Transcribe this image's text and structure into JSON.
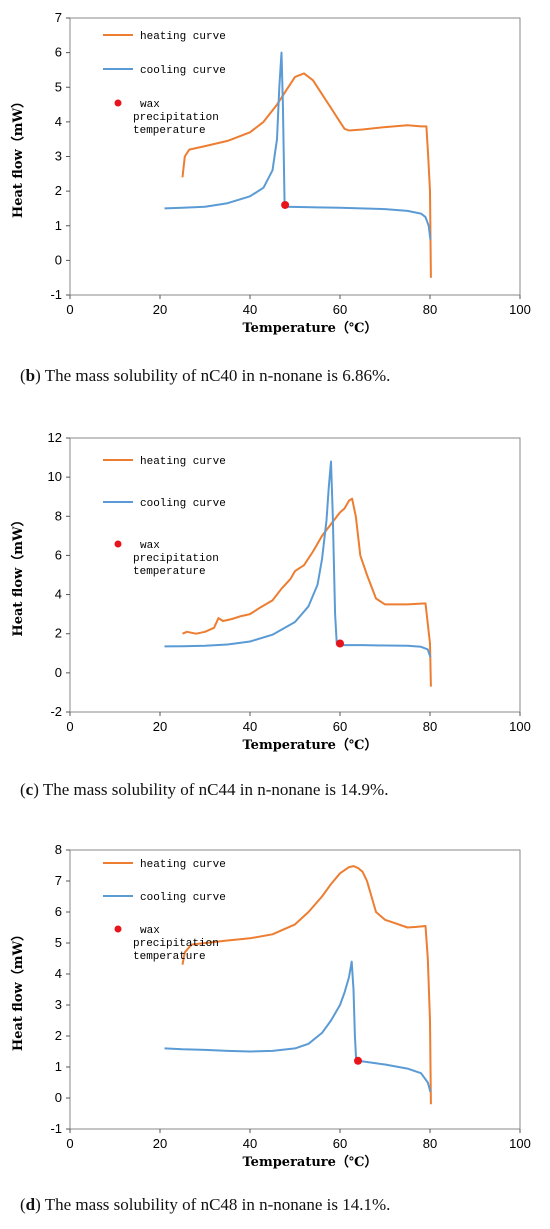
{
  "chart_data": [
    {
      "type": "line",
      "xlabel": "Temperature（℃）",
      "ylabel": "Heat flow（mW）",
      "xlim": [
        0,
        100
      ],
      "ylim": [
        -1,
        7
      ],
      "xticks": [
        "0",
        "20",
        "40",
        "60",
        "80",
        "100"
      ],
      "yticks": [
        "-1",
        "0",
        "1",
        "2",
        "3",
        "4",
        "5",
        "6",
        "7"
      ],
      "grid": false,
      "legend_placement": "top-left",
      "series": [
        {
          "name": "heating curve",
          "color": "#ED7D31",
          "points": [
            [
              25,
              2.4
            ],
            [
              25.5,
              3.0
            ],
            [
              26.5,
              3.2
            ],
            [
              30,
              3.3
            ],
            [
              35,
              3.45
            ],
            [
              40,
              3.7
            ],
            [
              43,
              4.0
            ],
            [
              46,
              4.5
            ],
            [
              48,
              4.9
            ],
            [
              50,
              5.3
            ],
            [
              52,
              5.4
            ],
            [
              54,
              5.2
            ],
            [
              56,
              4.8
            ],
            [
              58,
              4.4
            ],
            [
              60,
              4.0
            ],
            [
              61,
              3.8
            ],
            [
              62,
              3.75
            ],
            [
              65,
              3.78
            ],
            [
              70,
              3.85
            ],
            [
              75,
              3.9
            ],
            [
              78,
              3.87
            ],
            [
              79.2,
              3.87
            ],
            [
              79.6,
              3.0
            ],
            [
              80,
              2.0
            ],
            [
              80.2,
              -0.5
            ]
          ]
        },
        {
          "name": "cooling curve",
          "color": "#5B9BD5",
          "points": [
            [
              21,
              1.5
            ],
            [
              25,
              1.52
            ],
            [
              30,
              1.55
            ],
            [
              35,
              1.65
            ],
            [
              40,
              1.85
            ],
            [
              43,
              2.1
            ],
            [
              45,
              2.6
            ],
            [
              46,
              3.5
            ],
            [
              46.5,
              5.0
            ],
            [
              47,
              6.0
            ],
            [
              47.3,
              4.5
            ],
            [
              47.7,
              1.6
            ],
            [
              48,
              1.55
            ],
            [
              55,
              1.53
            ],
            [
              60,
              1.52
            ],
            [
              70,
              1.48
            ],
            [
              75,
              1.43
            ],
            [
              78,
              1.35
            ],
            [
              79,
              1.25
            ],
            [
              79.7,
              1.0
            ],
            [
              80.1,
              0.6
            ]
          ]
        }
      ],
      "marker": {
        "name": "wax precipitation temperature",
        "color": "#E8141B",
        "x": 47.8,
        "y": 1.6
      }
    },
    {
      "type": "line",
      "xlabel": "Temperature（℃）",
      "ylabel": "Heat flow（mW）",
      "xlim": [
        0,
        100
      ],
      "ylim": [
        -2,
        12
      ],
      "xticks": [
        "0",
        "20",
        "40",
        "60",
        "80",
        "100"
      ],
      "yticks": [
        "-2",
        "0",
        "2",
        "4",
        "6",
        "8",
        "10",
        "12"
      ],
      "grid": false,
      "legend_placement": "top-left",
      "series": [
        {
          "name": "heating curve",
          "color": "#ED7D31",
          "points": [
            [
              25,
              2.0
            ],
            [
              26,
              2.1
            ],
            [
              28,
              2.0
            ],
            [
              30,
              2.1
            ],
            [
              32,
              2.3
            ],
            [
              33,
              2.8
            ],
            [
              34,
              2.65
            ],
            [
              36,
              2.75
            ],
            [
              38,
              2.9
            ],
            [
              40,
              3.0
            ],
            [
              42,
              3.3
            ],
            [
              45,
              3.7
            ],
            [
              47,
              4.3
            ],
            [
              49,
              4.8
            ],
            [
              50,
              5.2
            ],
            [
              52,
              5.5
            ],
            [
              54,
              6.2
            ],
            [
              56,
              7.0
            ],
            [
              58,
              7.6
            ],
            [
              60,
              8.2
            ],
            [
              61,
              8.4
            ],
            [
              62,
              8.8
            ],
            [
              62.7,
              8.9
            ],
            [
              63.5,
              8.0
            ],
            [
              64.5,
              6.0
            ],
            [
              66,
              5.0
            ],
            [
              68,
              3.8
            ],
            [
              70,
              3.5
            ],
            [
              75,
              3.5
            ],
            [
              79,
              3.55
            ],
            [
              79.5,
              2.5
            ],
            [
              80,
              1.5
            ],
            [
              80.2,
              -0.7
            ]
          ]
        },
        {
          "name": "cooling curve",
          "color": "#5B9BD5",
          "points": [
            [
              21,
              1.35
            ],
            [
              25,
              1.36
            ],
            [
              30,
              1.38
            ],
            [
              35,
              1.45
            ],
            [
              40,
              1.6
            ],
            [
              45,
              1.95
            ],
            [
              50,
              2.6
            ],
            [
              53,
              3.4
            ],
            [
              55,
              4.5
            ],
            [
              56,
              5.8
            ],
            [
              57,
              7.8
            ],
            [
              57.5,
              9.5
            ],
            [
              58,
              10.8
            ],
            [
              58.4,
              8.0
            ],
            [
              58.9,
              3.0
            ],
            [
              59.3,
              1.45
            ],
            [
              60,
              1.42
            ],
            [
              65,
              1.42
            ],
            [
              70,
              1.4
            ],
            [
              75,
              1.38
            ],
            [
              78,
              1.33
            ],
            [
              79.5,
              1.2
            ],
            [
              80.1,
              0.8
            ]
          ]
        }
      ],
      "marker": {
        "name": "wax precipitation temperature",
        "color": "#E8141B",
        "x": 60,
        "y": 1.5
      }
    },
    {
      "type": "line",
      "xlabel": "Temperature（℃）",
      "ylabel": "Heat flow（mW）",
      "xlim": [
        0,
        100
      ],
      "ylim": [
        -1,
        8
      ],
      "xticks": [
        "0",
        "20",
        "40",
        "60",
        "80",
        "100"
      ],
      "yticks": [
        "-1",
        "0",
        "1",
        "2",
        "3",
        "4",
        "5",
        "6",
        "7",
        "8"
      ],
      "grid": false,
      "legend_placement": "top-left",
      "series": [
        {
          "name": "heating curve",
          "color": "#ED7D31",
          "points": [
            [
              25,
              4.3
            ],
            [
              25.5,
              4.7
            ],
            [
              27,
              4.95
            ],
            [
              30,
              5.0
            ],
            [
              35,
              5.08
            ],
            [
              40,
              5.15
            ],
            [
              45,
              5.28
            ],
            [
              50,
              5.6
            ],
            [
              53,
              6.0
            ],
            [
              56,
              6.5
            ],
            [
              58,
              6.9
            ],
            [
              60,
              7.25
            ],
            [
              62,
              7.45
            ],
            [
              63,
              7.48
            ],
            [
              64,
              7.42
            ],
            [
              65,
              7.3
            ],
            [
              66,
              7.0
            ],
            [
              67,
              6.5
            ],
            [
              68,
              6.0
            ],
            [
              70,
              5.75
            ],
            [
              72,
              5.65
            ],
            [
              75,
              5.5
            ],
            [
              77,
              5.52
            ],
            [
              79,
              5.55
            ],
            [
              79.5,
              4.5
            ],
            [
              80,
              2.5
            ],
            [
              80.2,
              -0.2
            ]
          ]
        },
        {
          "name": "cooling curve",
          "color": "#5B9BD5",
          "points": [
            [
              21,
              1.6
            ],
            [
              25,
              1.57
            ],
            [
              30,
              1.55
            ],
            [
              35,
              1.52
            ],
            [
              40,
              1.5
            ],
            [
              45,
              1.52
            ],
            [
              50,
              1.6
            ],
            [
              53,
              1.75
            ],
            [
              56,
              2.1
            ],
            [
              58,
              2.5
            ],
            [
              60,
              3.0
            ],
            [
              61,
              3.4
            ],
            [
              62,
              3.9
            ],
            [
              62.6,
              4.4
            ],
            [
              63,
              3.5
            ],
            [
              63.3,
              2.0
            ],
            [
              63.6,
              1.2
            ],
            [
              65,
              1.18
            ],
            [
              70,
              1.08
            ],
            [
              75,
              0.95
            ],
            [
              78,
              0.8
            ],
            [
              79.5,
              0.5
            ],
            [
              80.1,
              0.2
            ]
          ]
        }
      ],
      "marker": {
        "name": "wax precipitation temperature",
        "color": "#E8141B",
        "x": 64,
        "y": 1.2
      }
    }
  ],
  "captions": [
    {
      "tag": "b",
      "text": ") The mass solubility of nC40 in n-nonane is 6.86%."
    },
    {
      "tag": "c",
      "text": ") The mass solubility of nC44 in n-nonane is 14.9%."
    },
    {
      "tag": "d",
      "text": ") The mass solubility of nC48 in n-nonane is 14.1%."
    }
  ],
  "legend_labels": {
    "heating": "heating curve",
    "cooling": "cooling curve",
    "marker_line1": "wax",
    "marker_line2": "precipitation",
    "marker_line3": "temperature"
  }
}
